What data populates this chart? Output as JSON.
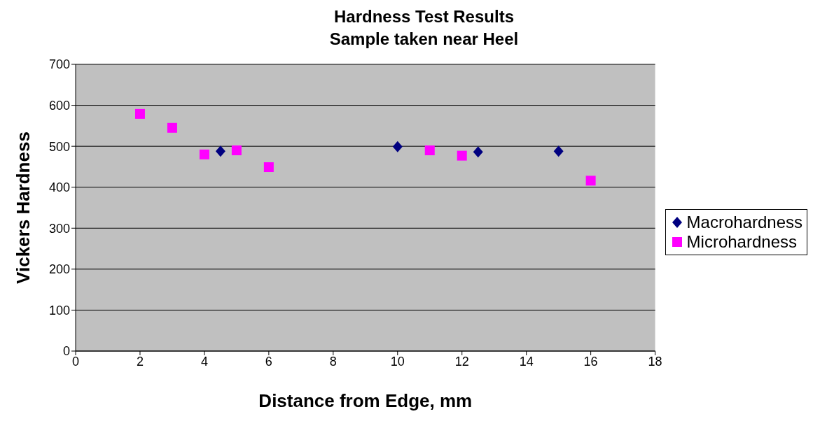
{
  "chart_data": {
    "type": "scatter",
    "title": "Hardness Test Results",
    "subtitle": "Sample taken near Heel",
    "xlabel": "Distance from Edge, mm",
    "ylabel": "Vickers Hardness",
    "xlim": [
      0,
      18
    ],
    "xticks": [
      0,
      2,
      4,
      6,
      8,
      10,
      12,
      14,
      16,
      18
    ],
    "ylim": [
      0,
      700
    ],
    "yticks": [
      0,
      100,
      200,
      300,
      400,
      500,
      600,
      700
    ],
    "grid": "y",
    "legend": "right",
    "series": [
      {
        "name": "Macrohardness",
        "color": "#000080",
        "marker": "diamond",
        "x": [
          4.5,
          10,
          12.5,
          15
        ],
        "values": [
          488,
          499,
          486,
          488
        ]
      },
      {
        "name": "Microhardness",
        "color": "#ff00ff",
        "marker": "square",
        "x": [
          2,
          3,
          4,
          5,
          6,
          11,
          12,
          16
        ],
        "values": [
          579,
          545,
          480,
          490,
          449,
          490,
          477,
          416
        ]
      }
    ]
  }
}
